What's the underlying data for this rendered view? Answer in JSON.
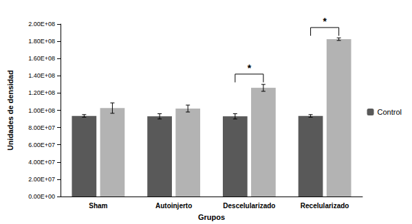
{
  "chart_data": {
    "type": "bar",
    "x_label": "Grupos",
    "y_label": "Unidades de densidad",
    "categories": [
      "Sham",
      "Autoinjerto",
      "Descelularizado",
      "Recelularizado"
    ],
    "series": [
      {
        "name": "Control",
        "color": "#595959",
        "values": [
          93500000,
          93000000,
          93000000,
          93500000
        ],
        "errors": [
          1500000,
          3000000,
          3000000,
          1500000
        ]
      },
      {
        "color": "#b3b3b3",
        "values": [
          102500000,
          102000000,
          126000000,
          182500000
        ],
        "errors": [
          6000000,
          4000000,
          4000000,
          1500000
        ]
      }
    ],
    "ylim": [
      0,
      200000000
    ],
    "yticks": [
      {
        "value": 0,
        "label": "0.00E+00"
      },
      {
        "value": 20000000,
        "label": "2.00E+07"
      },
      {
        "value": 40000000,
        "label": "4.00E+07"
      },
      {
        "value": 60000000,
        "label": "6.00E+07"
      },
      {
        "value": 80000000,
        "label": "8.00E+07"
      },
      {
        "value": 100000000,
        "label": "1.00E+08"
      },
      {
        "value": 120000000,
        "label": "1.20E+08"
      },
      {
        "value": 140000000,
        "label": "1.40E+08"
      },
      {
        "value": 160000000,
        "label": "1.60E+08"
      },
      {
        "value": 180000000,
        "label": "1.80E+08"
      },
      {
        "value": 200000000,
        "label": "2.00E+08"
      }
    ],
    "grid": false,
    "legend": "right",
    "annotations": [
      {
        "category": "Descelularizado",
        "text": "*"
      },
      {
        "category": "Recelularizado",
        "text": "*"
      }
    ]
  }
}
